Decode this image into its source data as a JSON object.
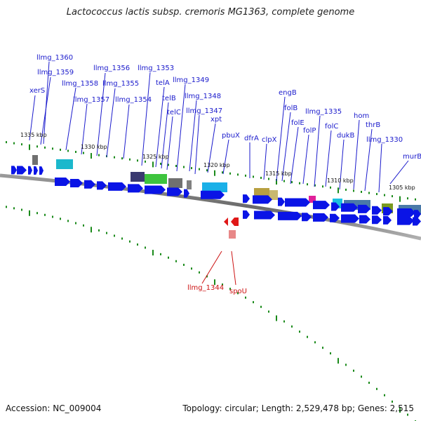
{
  "title": "Lactococcus lactis subsp. cremoris MG1363, complete genome",
  "footer": {
    "accession": "Accession: NC_009004",
    "summary": "Topology: circular; Length: 2,529,478 bp; Genes: 2,515"
  },
  "colors": {
    "forward_gene": "#0a14e6",
    "reverse_gene": "#e01818",
    "forward_label": "#1a1acc",
    "reverse_label": "#cc1111",
    "tick": "#1a8a1a",
    "backbone": "#777777"
  },
  "scale_labels": [
    "1335 kbp",
    "1330 kbp",
    "1325 kbp",
    "1320 kbp",
    "1315 kbp",
    "1310 kbp",
    "1305 kbp"
  ],
  "forward_gene_labels": [
    "llmg_1360",
    "llmg_1359",
    "xerS",
    "llmg_1358",
    "llmg_1357",
    "llmg_1356",
    "llmg_1355",
    "llmg_1354",
    "llmg_1353",
    "telA",
    "telB",
    "telC",
    "llmg_1349",
    "llmg_1348",
    "llmg_1347",
    "xpt",
    "pbuX",
    "dfrA",
    "clpX",
    "engB",
    "folB",
    "folE",
    "folP",
    "llmg_1335",
    "folC",
    "dukB",
    "hom",
    "thrB",
    "llmg_1330",
    "murB"
  ],
  "reverse_gene_labels": [
    "llmg_1344",
    "spoU"
  ]
}
